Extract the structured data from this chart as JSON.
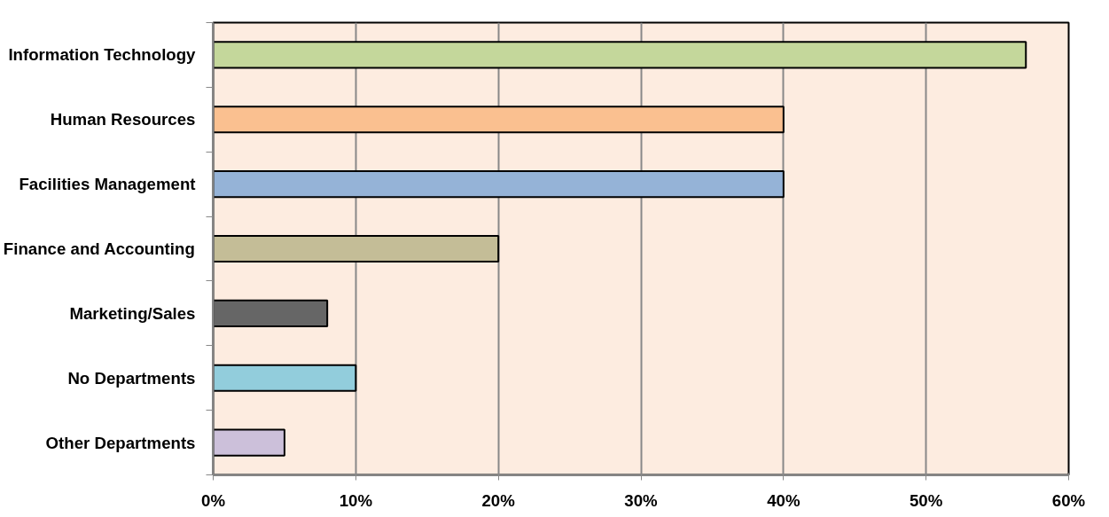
{
  "chart_data": {
    "type": "bar",
    "orientation": "horizontal",
    "categories": [
      "Information Technology",
      "Human Resources",
      "Facilities Management",
      "Finance and Accounting",
      "Marketing/Sales",
      "No Departments",
      "Other Departments"
    ],
    "values": [
      57,
      40,
      40,
      20,
      8,
      10,
      5
    ],
    "colors": [
      "#c4d79b",
      "#fac090",
      "#95b3d7",
      "#c4bd97",
      "#666666",
      "#92cddc",
      "#ccc0da"
    ],
    "xlim": [
      0,
      60
    ],
    "xticks": [
      {
        "value": 0,
        "label": "0%"
      },
      {
        "value": 10,
        "label": "10%"
      },
      {
        "value": 20,
        "label": "20%"
      },
      {
        "value": 30,
        "label": "30%"
      },
      {
        "value": 40,
        "label": "40%"
      },
      {
        "value": 50,
        "label": "50%"
      },
      {
        "value": 60,
        "label": "60%"
      }
    ],
    "grid": "x"
  }
}
